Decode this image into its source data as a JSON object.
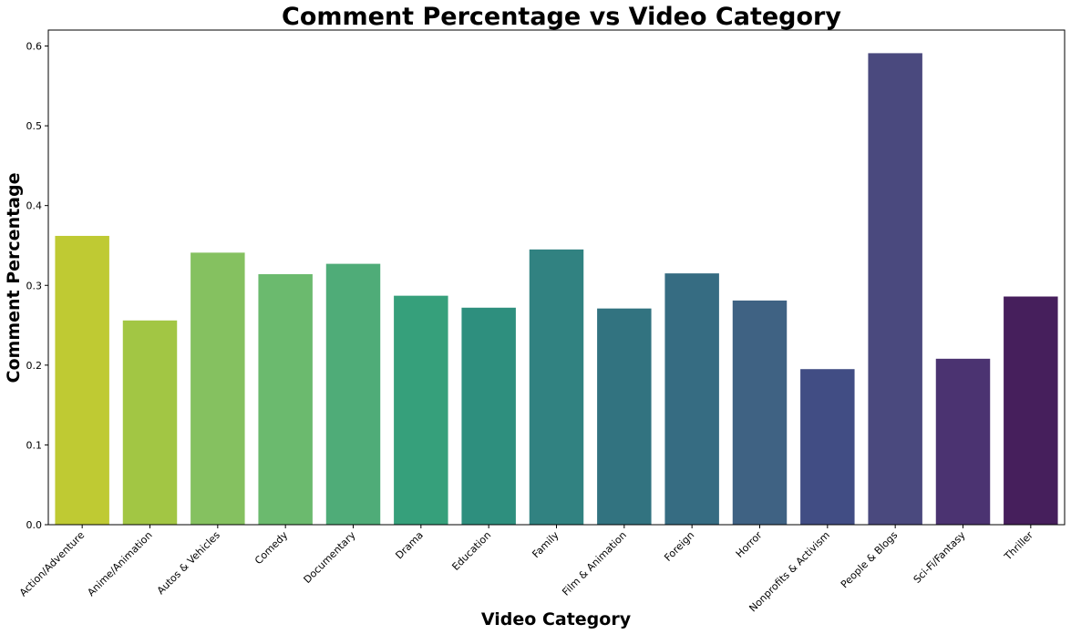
{
  "chart_data": {
    "type": "bar",
    "title": "Comment Percentage vs Video Category",
    "xlabel": "Video Category",
    "ylabel": "Comment Percentage",
    "ylim": [
      0,
      0.62
    ],
    "yticks": [
      "0.0",
      "0.1",
      "0.2",
      "0.3",
      "0.4",
      "0.5",
      "0.6"
    ],
    "grid": false,
    "categories": [
      "Action/Adventure",
      "Anime/Animation",
      "Autos & Vehicles",
      "Comedy",
      "Documentary",
      "Drama",
      "Education",
      "Family",
      "Film & Animation",
      "Foreign",
      "Horror",
      "Nonprofits & Activism",
      "People & Blogs",
      "Sci-Fi/Fantasy",
      "Thriller"
    ],
    "values": [
      0.362,
      0.256,
      0.341,
      0.314,
      0.327,
      0.287,
      0.272,
      0.345,
      0.271,
      0.315,
      0.281,
      0.195,
      0.591,
      0.208,
      0.286
    ],
    "colors": [
      "#bfca33",
      "#a2c644",
      "#85c160",
      "#6bba6e",
      "#4fac78",
      "#36a07b",
      "#2e8f7e",
      "#318281",
      "#327380",
      "#366c82",
      "#3f6283",
      "#414d84",
      "#4a497e",
      "#4b3371",
      "#461f5c"
    ]
  }
}
